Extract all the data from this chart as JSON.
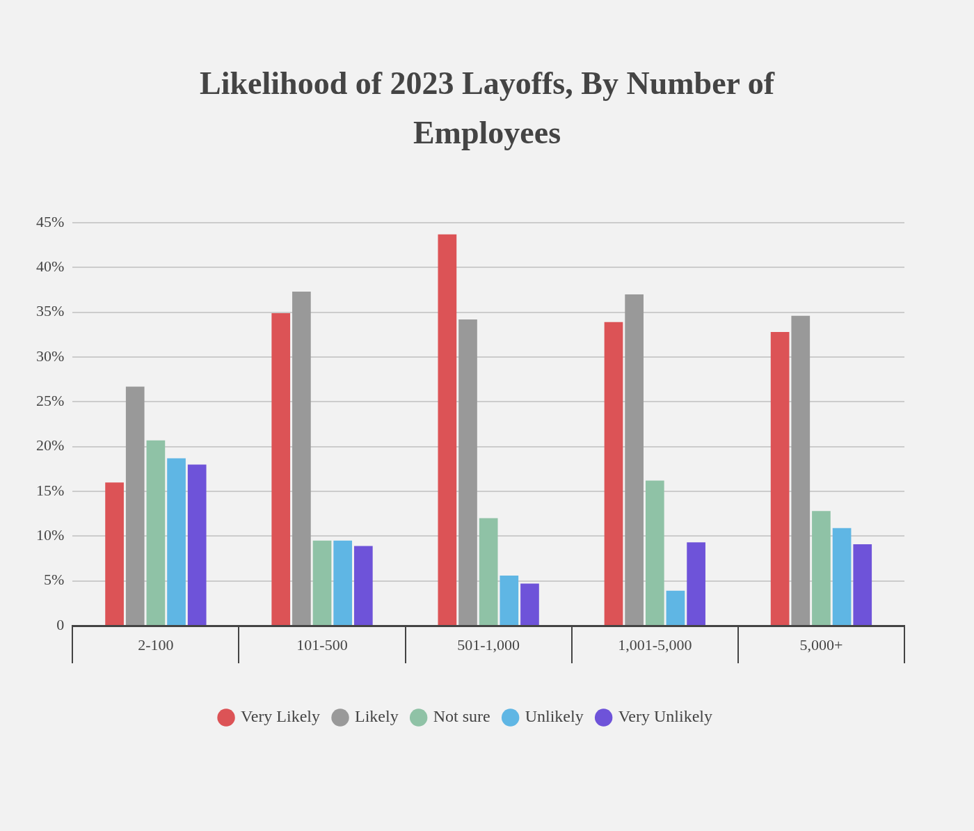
{
  "chart_data": {
    "type": "bar",
    "title": "Likelihood of 2023 Layoffs, By Number of Employees",
    "categories": [
      "2-100",
      "101-500",
      "501-1,000",
      "1,001-5,000",
      "5,000+"
    ],
    "series": [
      {
        "name": "Very Likely",
        "color": "#dc5356",
        "values": [
          16.0,
          34.9,
          43.7,
          33.9,
          32.8
        ]
      },
      {
        "name": "Likely",
        "color": "#999999",
        "values": [
          26.7,
          37.3,
          34.2,
          37.0,
          34.6
        ]
      },
      {
        "name": "Not sure",
        "color": "#8fc2a6",
        "values": [
          20.7,
          9.5,
          12.0,
          16.2,
          12.8
        ]
      },
      {
        "name": "Unlikely",
        "color": "#5fb6e4",
        "values": [
          18.7,
          9.5,
          5.6,
          3.9,
          10.9
        ]
      },
      {
        "name": "Very Unlikely",
        "color": "#6e53d9",
        "values": [
          18.0,
          8.9,
          4.7,
          9.3,
          9.1
        ]
      }
    ],
    "ylim": [
      0,
      45
    ],
    "yticks": [
      0,
      {
        "value": 5,
        "label": "5%"
      },
      {
        "value": 10,
        "label": "10%"
      },
      {
        "value": 15,
        "label": "15%"
      },
      {
        "value": 20,
        "label": "20%"
      },
      {
        "value": 25,
        "label": "25%"
      },
      {
        "value": 30,
        "label": "30%"
      },
      {
        "value": 35,
        "label": "35%"
      },
      {
        "value": 40,
        "label": "40%"
      },
      {
        "value": 45,
        "label": "45%"
      }
    ],
    "grid": "y",
    "legend": "bottom"
  }
}
